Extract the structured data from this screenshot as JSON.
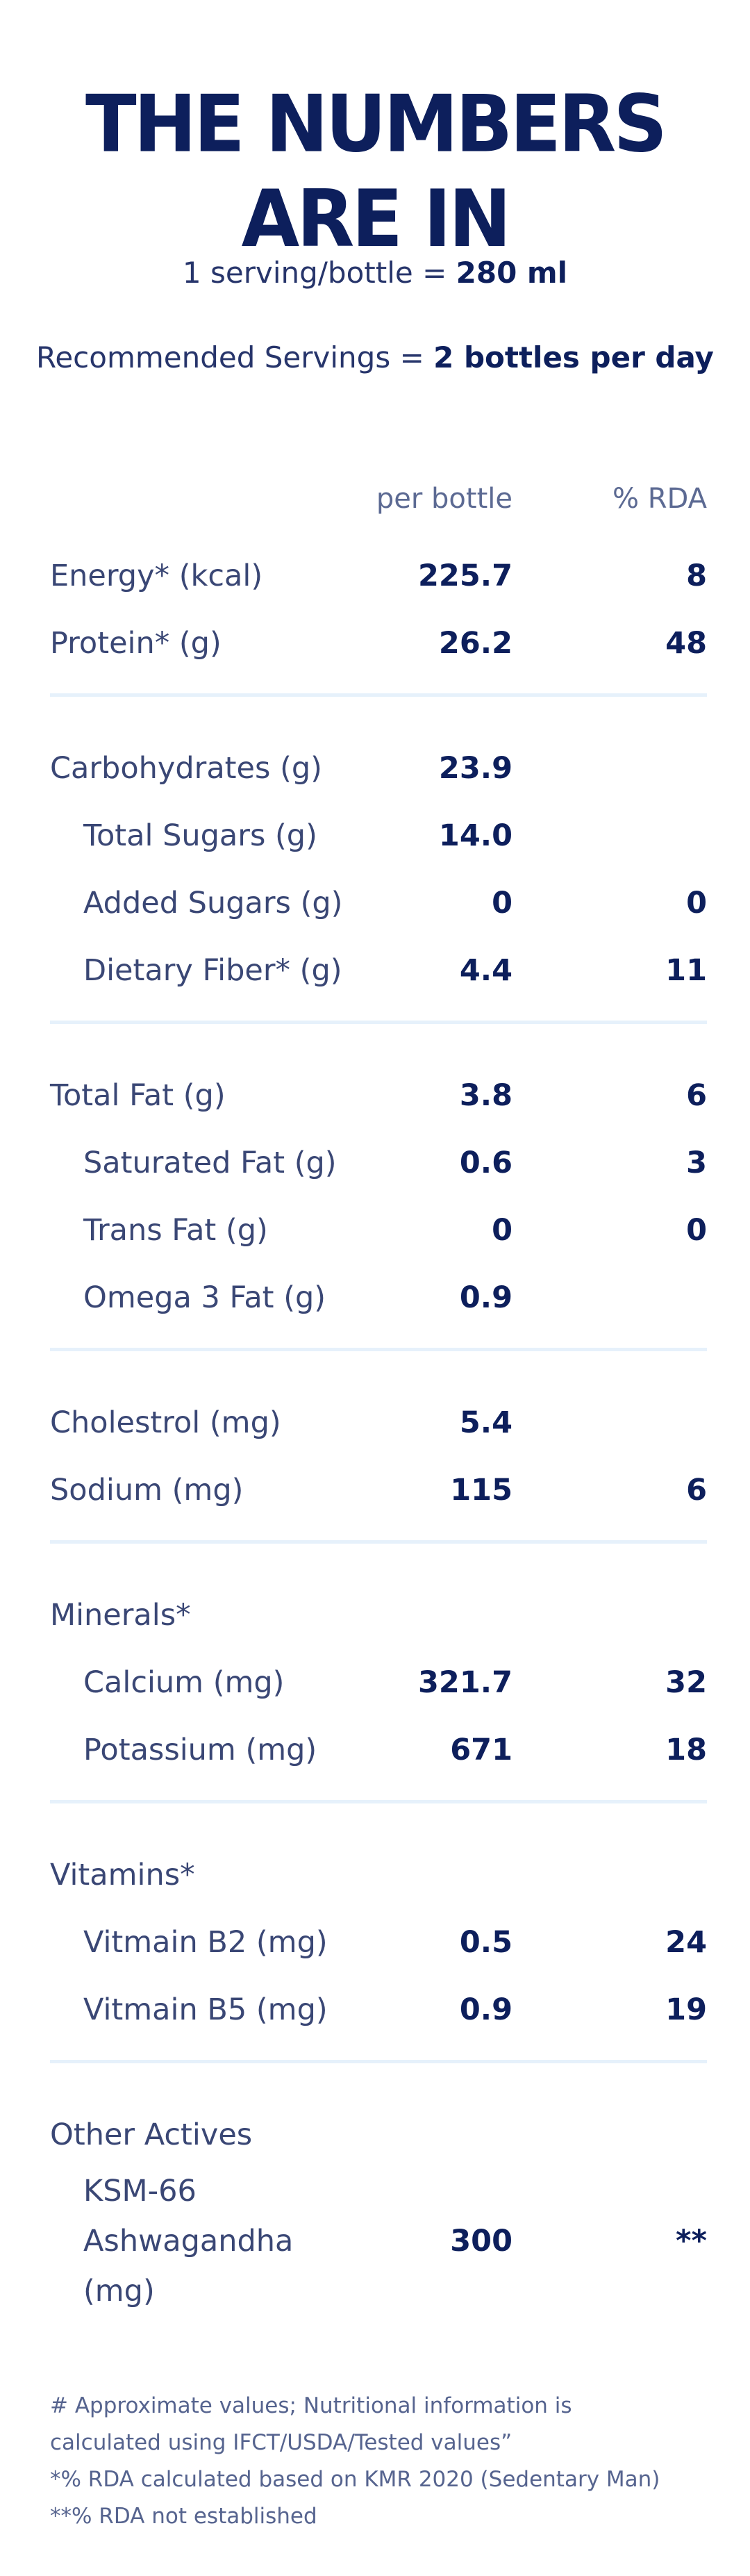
{
  "title": "THE NUMBERS ARE IN",
  "serving": {
    "prefix": "1 serving/bottle = ",
    "value": "280 ml"
  },
  "recommended": {
    "prefix": "Recommended Servings = ",
    "value": "2 bottles per day"
  },
  "columns": {
    "per_bottle": "per bottle",
    "rda": "% RDA"
  },
  "sections": [
    {
      "rows": [
        {
          "label": "Energy* (kcal)",
          "per": "225.7",
          "rda": "8"
        },
        {
          "label": "Protein* (g)",
          "per": "26.2",
          "rda": "48"
        }
      ]
    },
    {
      "rows": [
        {
          "label": "Carbohydrates (g)",
          "per": "23.9",
          "rda": ""
        },
        {
          "label": "Total Sugars (g)",
          "per": "14.0",
          "rda": "",
          "indent": true
        },
        {
          "label": "Added Sugars (g)",
          "per": "0",
          "rda": "0",
          "indent": true
        },
        {
          "label": "Dietary Fiber* (g)",
          "per": "4.4",
          "rda": "11",
          "indent": true
        }
      ]
    },
    {
      "rows": [
        {
          "label": "Total Fat (g)",
          "per": "3.8",
          "rda": "6"
        },
        {
          "label": "Saturated Fat (g)",
          "per": "0.6",
          "rda": "3",
          "indent": true
        },
        {
          "label": "Trans Fat (g)",
          "per": "0",
          "rda": "0",
          "indent": true
        },
        {
          "label": "Omega 3 Fat (g)",
          "per": "0.9",
          "rda": "",
          "indent": true
        }
      ]
    },
    {
      "rows": [
        {
          "label": "Cholestrol (mg)",
          "per": "5.4",
          "rda": ""
        },
        {
          "label": "Sodium (mg)",
          "per": "115",
          "rda": "6"
        }
      ]
    },
    {
      "rows": [
        {
          "label": "Minerals*",
          "per": "",
          "rda": ""
        },
        {
          "label": "Calcium (mg)",
          "per": "321.7",
          "rda": "32",
          "indent": true
        },
        {
          "label": "Potassium (mg)",
          "per": "671",
          "rda": "18",
          "indent": true
        }
      ]
    },
    {
      "rows": [
        {
          "label": "Vitamins*",
          "per": "",
          "rda": ""
        },
        {
          "label": "Vitmain B2 (mg)",
          "per": "0.5",
          "rda": "24",
          "indent": true
        },
        {
          "label": "Vitmain B5 (mg)",
          "per": "0.9",
          "rda": "19",
          "indent": true
        }
      ]
    },
    {
      "rows": [
        {
          "label": "Other Actives",
          "per": "",
          "rda": ""
        },
        {
          "label": "KSM-66\nAshwagandha\n(mg)",
          "per": "300",
          "rda": "**",
          "indent": true,
          "tall": true
        }
      ]
    }
  ],
  "footnotes": [
    "# Approximate values; Nutritional information is calculated using IFCT/USDA/Tested values”",
    "*% RDA calculated based on KMR 2020 (Sedentary Man)",
    "**% RDA not established"
  ]
}
